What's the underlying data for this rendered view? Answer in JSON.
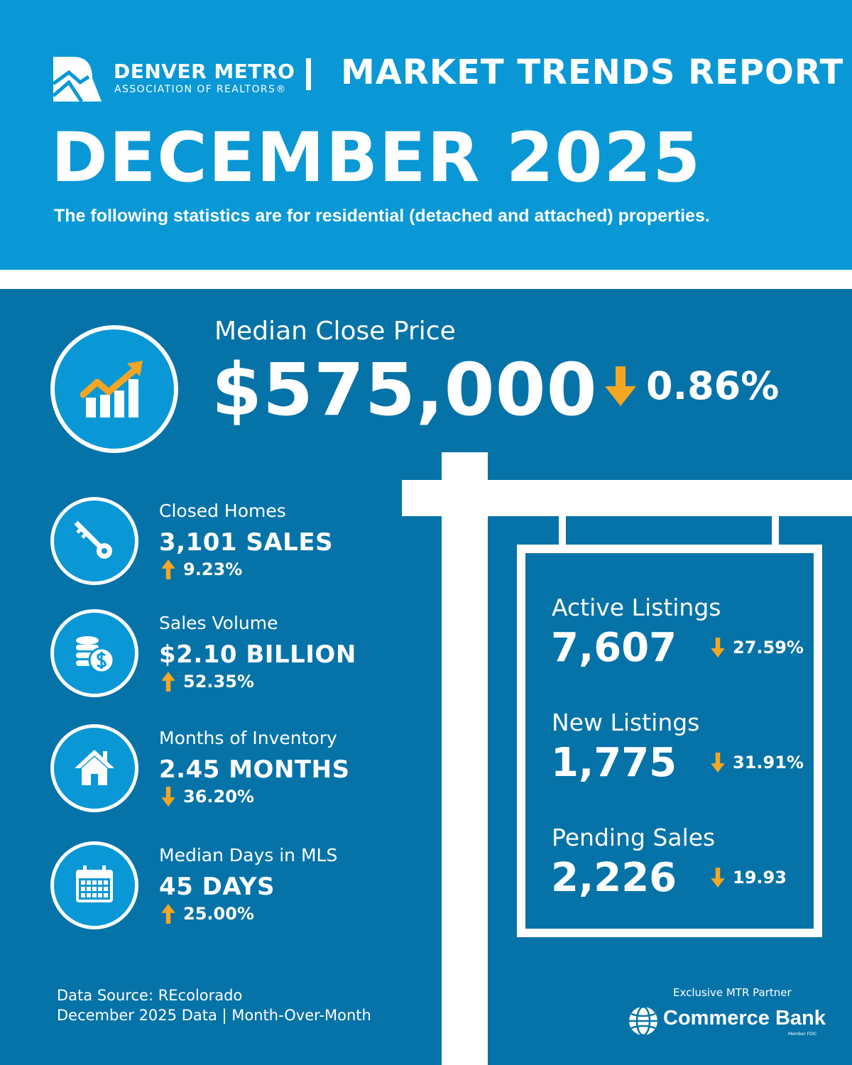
{
  "header": {
    "org_name": "DENVER METRO",
    "org_sub": "ASSOCIATION OF REALTORS®",
    "report_title": "MARKET TRENDS REPORT",
    "month": "DECEMBER 2025",
    "subtitle": "The following statistics are for residential (detached and attached) properties."
  },
  "colors": {
    "top": "#0998d5",
    "bottom": "#0673a8",
    "accent": "#f5a623"
  },
  "main": {
    "label": "Median Close Price",
    "value": "$575,000",
    "change": "0.86%",
    "direction": "down",
    "icon": "trend-chart-icon"
  },
  "stats": [
    {
      "label": "Closed Homes",
      "value": "3,101 SALES",
      "change": "9.23%",
      "direction": "up",
      "icon": "key-icon"
    },
    {
      "label": "Sales Volume",
      "value": "$2.10 BILLION",
      "change": "52.35%",
      "direction": "up",
      "icon": "coins-icon"
    },
    {
      "label": "Months of Inventory",
      "value": "2.45 MONTHS",
      "change": "36.20%",
      "direction": "down",
      "icon": "house-icon"
    },
    {
      "label": "Median Days in MLS",
      "value": "45 DAYS",
      "change": "25.00%",
      "direction": "up",
      "icon": "calendar-icon"
    }
  ],
  "sign": [
    {
      "label": "Active Listings",
      "value": "7,607",
      "change": "27.59%",
      "direction": "down"
    },
    {
      "label": "New Listings",
      "value": "1,775",
      "change": "31.91%",
      "direction": "down"
    },
    {
      "label": "Pending Sales",
      "value": "2,226",
      "change": "19.93",
      "direction": "down"
    }
  ],
  "footer": {
    "source": "Data Source: REcolorado",
    "period": "December 2025 Data | Month-Over-Month",
    "partner_label": "Exclusive MTR Partner",
    "partner_name": "Commerce Bank",
    "partner_sub": "Member FDIC"
  }
}
